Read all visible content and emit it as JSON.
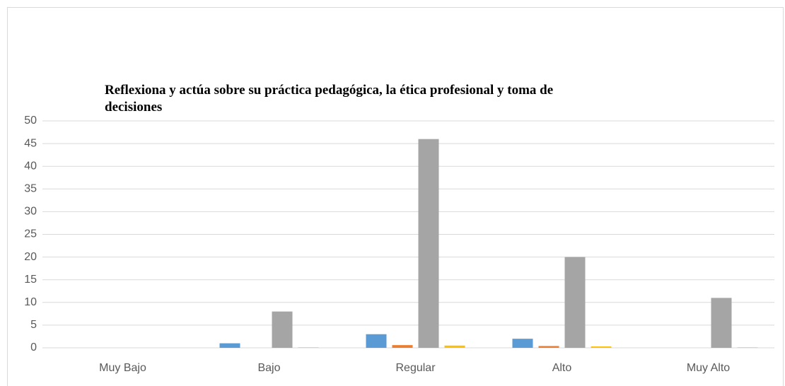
{
  "chart_data": {
    "type": "bar",
    "title": "Reflexiona y actúa sobre su práctica pedagógica, la ética profesional y toma de decisiones",
    "categories": [
      "Muy Bajo",
      "Bajo",
      "Regular",
      "Alto",
      "Muy Alto"
    ],
    "series": [
      {
        "color": "#5b9bd5",
        "values": [
          0,
          1,
          3,
          2,
          0
        ]
      },
      {
        "color": "#ed7d31",
        "values": [
          0,
          0,
          0.6,
          0.4,
          0
        ]
      },
      {
        "color": "#a5a5a5",
        "values": [
          0,
          8,
          46,
          20,
          11
        ]
      },
      {
        "color": "#ffc000",
        "values": [
          0,
          0.1,
          0.5,
          0.3,
          0.1
        ]
      }
    ],
    "ylim": [
      0,
      50
    ],
    "yticks": [
      0,
      5,
      10,
      15,
      20,
      25,
      30,
      35,
      40,
      45,
      50
    ],
    "grid": true
  }
}
